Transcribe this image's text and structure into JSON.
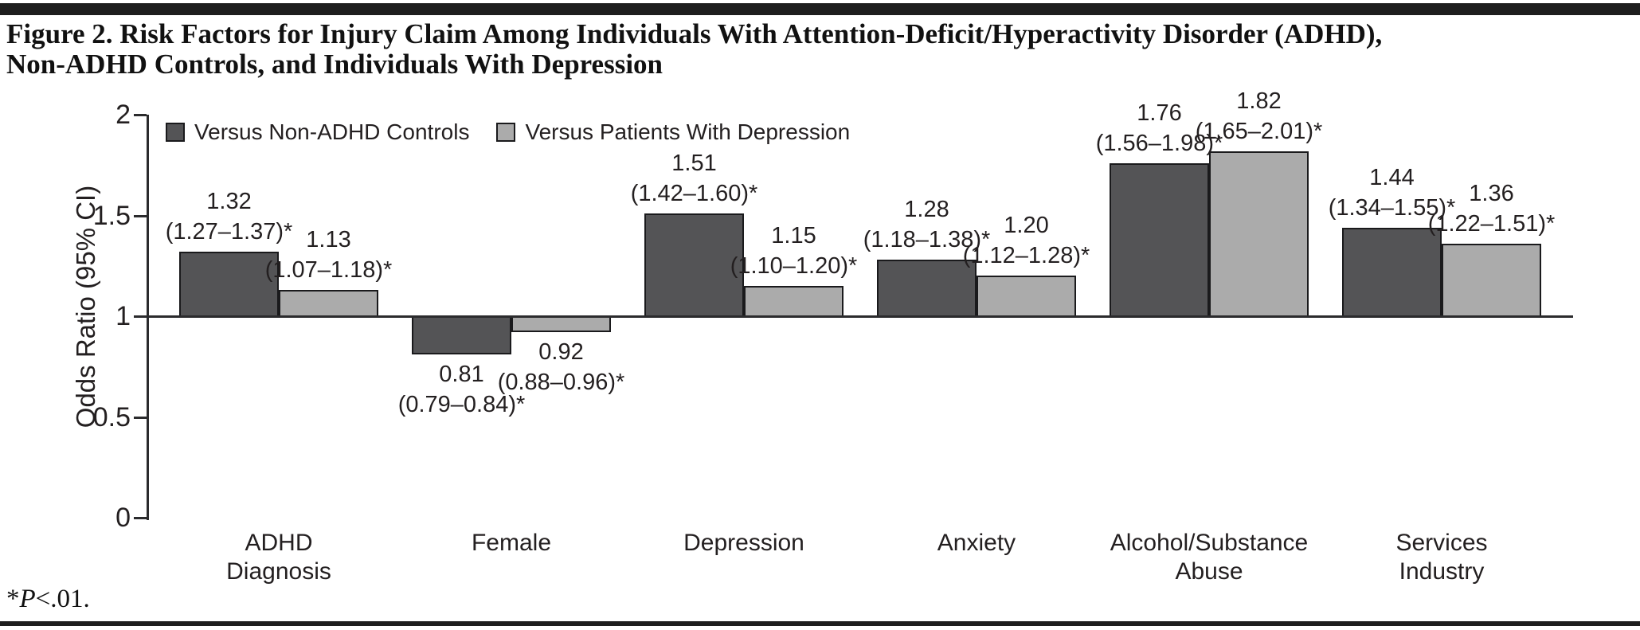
{
  "page": {
    "title": {
      "line1": "Figure 2. Risk Factors for Injury Claim Among Individuals With Attention-Deficit/Hyperactivity Disorder (ADHD),",
      "line2": "Non-ADHD Controls, and Individuals With Depression"
    },
    "footnote": {
      "star": "*",
      "p": "P",
      "rest": "<.01."
    }
  },
  "chart_data": {
    "type": "bar",
    "title": "Figure 2. Risk Factors for Injury Claim Among Individuals With Attention-Deficit/Hyperactivity Disorder (ADHD), Non-ADHD Controls, and Individuals With Depression",
    "ylabel": "Odds Ratio (95% CI)",
    "ylim": [
      0,
      2
    ],
    "yticks": [
      0,
      0.5,
      1,
      1.5,
      2
    ],
    "ytick_labels": [
      "0",
      "0.5",
      "1",
      "1.5",
      "2"
    ],
    "baseline": 1,
    "grid": false,
    "legend_position": "top-left",
    "categories": [
      "ADHD\nDiagnosis",
      "Female",
      "Depression",
      "Anxiety",
      "Alcohol/Substance\nAbuse",
      "Services\nIndustry"
    ],
    "series": [
      {
        "name": "Versus Non-ADHD Controls",
        "color": "#545456",
        "values": [
          1.32,
          0.81,
          1.51,
          1.28,
          1.76,
          1.44
        ],
        "value_labels": [
          "1.32",
          "0.81",
          "1.51",
          "1.28",
          "1.76",
          "1.44"
        ],
        "ci_labels": [
          "(1.27–1.37)*",
          "(0.79–0.84)*",
          "(1.42–1.60)*",
          "(1.18–1.38)*",
          "(1.56–1.98)*",
          "(1.34–1.55)*"
        ]
      },
      {
        "name": "Versus Patients With Depression",
        "color": "#ababab",
        "values": [
          1.13,
          0.92,
          1.15,
          1.2,
          1.82,
          1.36
        ],
        "value_labels": [
          "1.13",
          "0.92",
          "1.15",
          "1.20",
          "1.82",
          "1.36"
        ],
        "ci_labels": [
          "(1.07–1.18)*",
          "(0.88–0.96)*",
          "(1.10–1.20)*",
          "(1.12–1.28)*",
          "(1.65–2.01)*",
          "(1.22–1.51)*"
        ]
      }
    ]
  }
}
